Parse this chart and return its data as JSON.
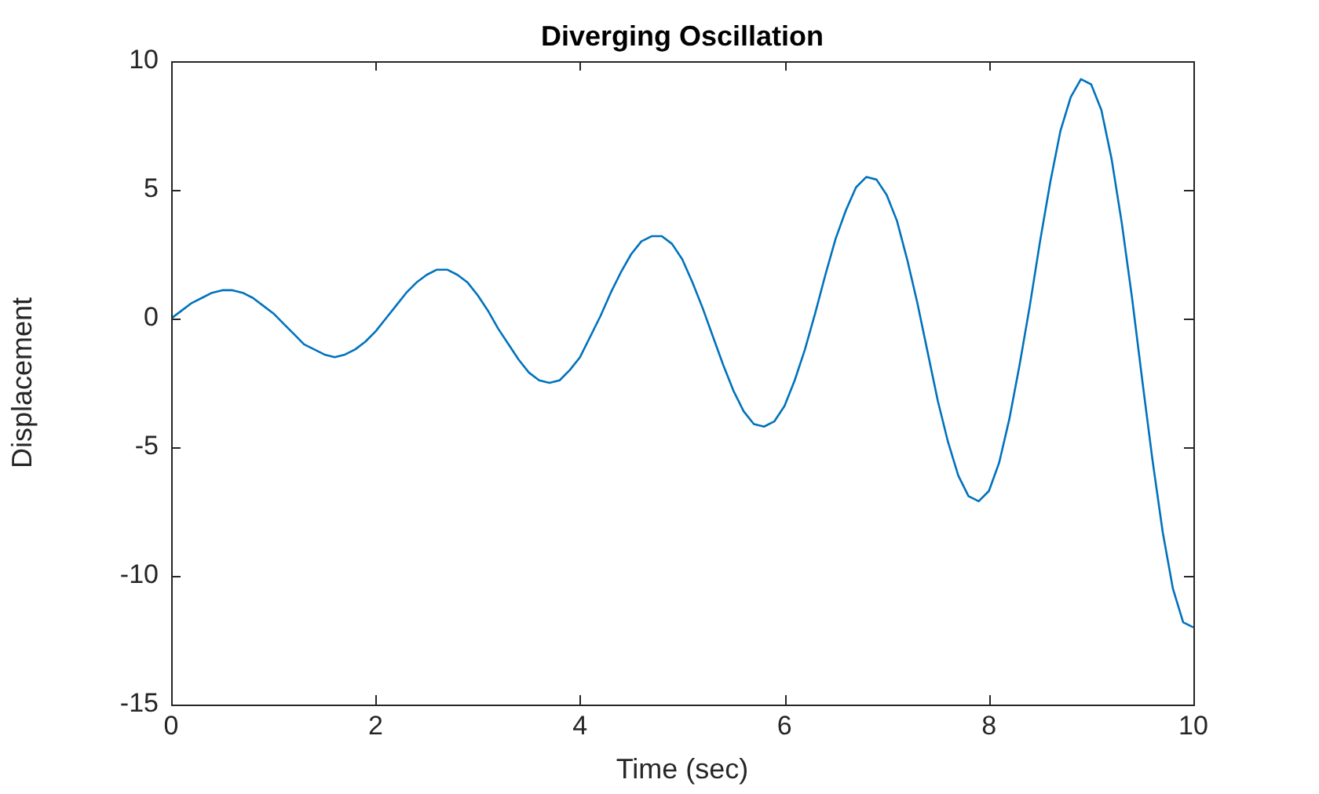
{
  "chart_data": {
    "type": "line",
    "title": "Diverging Oscillation",
    "xlabel": "Time (sec)",
    "ylabel": "Displacement",
    "x": [
      0,
      0.1,
      0.2,
      0.3,
      0.4,
      0.5,
      0.6,
      0.7,
      0.8,
      0.9,
      1,
      1.1,
      1.2,
      1.3,
      1.4,
      1.5,
      1.6,
      1.7,
      1.8,
      1.9,
      2,
      2.1,
      2.2,
      2.3,
      2.4,
      2.5,
      2.6,
      2.7,
      2.8,
      2.9,
      3,
      3.1,
      3.2,
      3.3,
      3.4,
      3.5,
      3.6,
      3.7,
      3.8,
      3.9,
      4,
      4.1,
      4.2,
      4.3,
      4.4,
      4.5,
      4.6,
      4.7,
      4.8,
      4.9,
      5,
      5.1,
      5.2,
      5.3,
      5.4,
      5.5,
      5.6,
      5.7,
      5.8,
      5.9,
      6,
      6.1,
      6.2,
      6.3,
      6.4,
      6.5,
      6.6,
      6.7,
      6.8,
      6.9,
      7,
      7.1,
      7.2,
      7.3,
      7.4,
      7.5,
      7.6,
      7.7,
      7.8,
      7.9,
      8,
      8.1,
      8.2,
      8.3,
      8.4,
      8.5,
      8.6,
      8.7,
      8.8,
      8.9,
      9,
      9.1,
      9.2,
      9.3,
      9.4,
      9.5,
      9.6,
      9.7,
      9.8,
      9.9,
      10
    ],
    "series": [
      {
        "color": "#0072bd",
        "values": [
          0,
          0.3,
          0.6,
          0.8,
          1.0,
          1.1,
          1.1,
          1.0,
          0.8,
          0.5,
          0.2,
          -0.2,
          -0.6,
          -1.0,
          -1.2,
          -1.4,
          -1.5,
          -1.4,
          -1.2,
          -0.9,
          -0.5,
          0.0,
          0.5,
          1.0,
          1.4,
          1.7,
          1.9,
          1.9,
          1.7,
          1.4,
          0.9,
          0.3,
          -0.4,
          -1.0,
          -1.6,
          -2.1,
          -2.4,
          -2.5,
          -2.4,
          -2.0,
          -1.5,
          -0.7,
          0.1,
          1.0,
          1.8,
          2.5,
          3.0,
          3.2,
          3.2,
          2.9,
          2.3,
          1.4,
          0.4,
          -0.7,
          -1.8,
          -2.8,
          -3.6,
          -4.1,
          -4.2,
          -4.0,
          -3.4,
          -2.4,
          -1.2,
          0.2,
          1.7,
          3.1,
          4.2,
          5.1,
          5.5,
          5.4,
          4.8,
          3.8,
          2.3,
          0.6,
          -1.3,
          -3.2,
          -4.8,
          -6.1,
          -6.9,
          -7.1,
          -6.7,
          -5.6,
          -3.9,
          -1.8,
          0.5,
          3.0,
          5.3,
          7.3,
          8.6,
          9.3,
          9.1,
          8.1,
          6.2,
          3.7,
          0.8,
          -2.4,
          -5.5,
          -8.3,
          -10.5,
          -11.8,
          -12.0
        ]
      }
    ],
    "xlim": [
      0,
      10
    ],
    "xticks": [
      0,
      2,
      4,
      6,
      8,
      10
    ],
    "ylim": [
      -15,
      10
    ],
    "yticks": [
      -15,
      -10,
      -5,
      0,
      5,
      10
    ],
    "grid": false,
    "legend": false,
    "marker": "none",
    "line_style": "solid"
  }
}
